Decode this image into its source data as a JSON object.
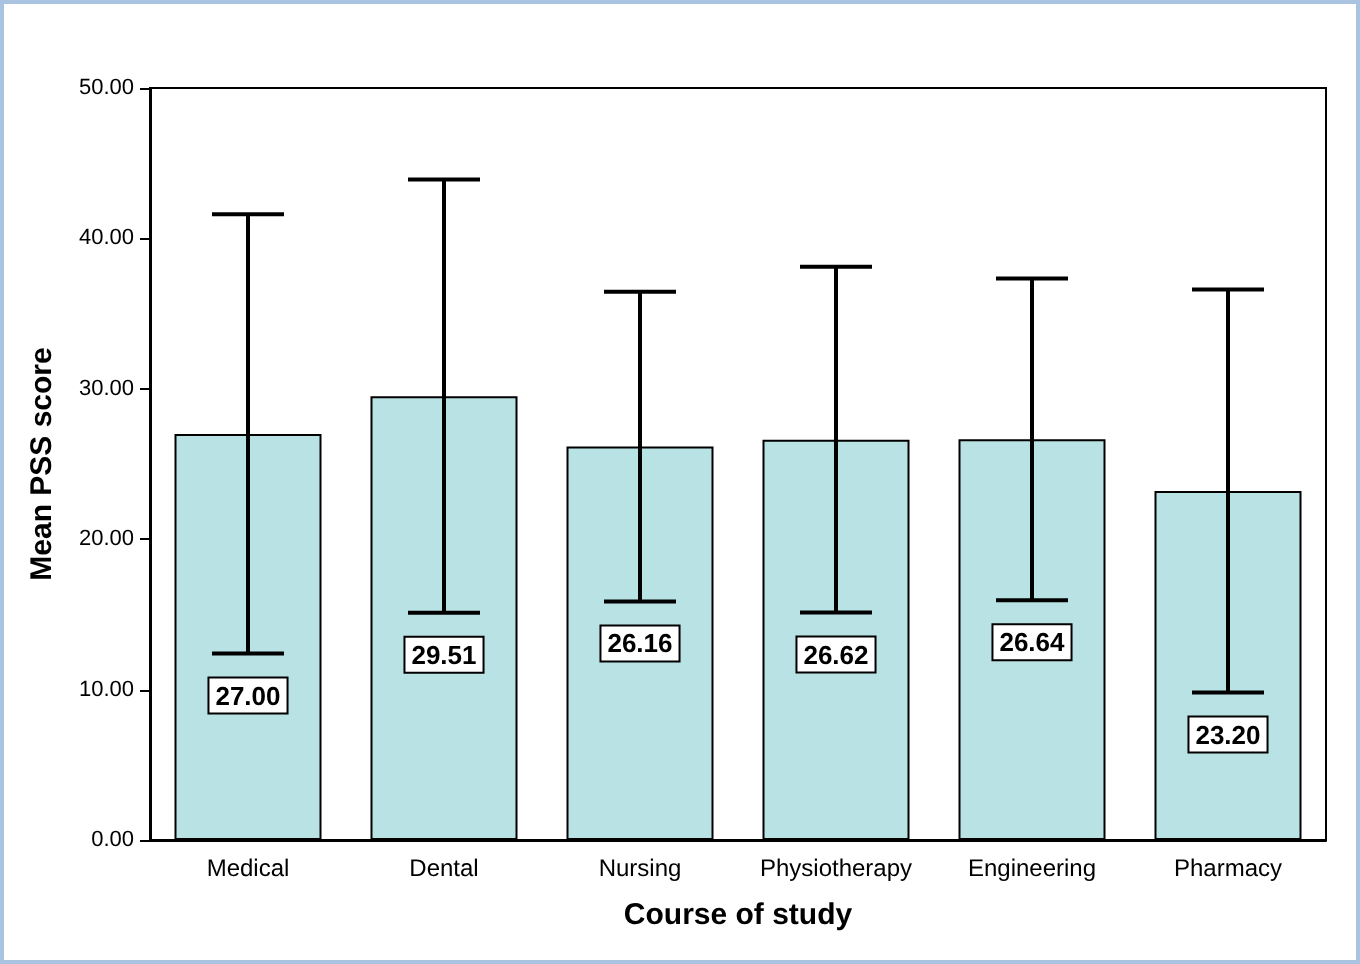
{
  "chart_data": {
    "type": "bar",
    "xlabel": "Course of study",
    "ylabel": "Mean PSS score",
    "categories": [
      "Medical",
      "Dental",
      "Nursing",
      "Physiotherapy",
      "Engineering",
      "Pharmacy"
    ],
    "values": [
      27.0,
      29.51,
      26.16,
      26.62,
      26.64,
      23.2
    ],
    "errors": [
      14.6,
      14.4,
      10.3,
      11.5,
      10.7,
      13.4
    ],
    "value_labels": [
      "27.00",
      "29.51",
      "26.16",
      "26.62",
      "26.64",
      "23.20"
    ],
    "color": "#b8e2e4",
    "ylim": [
      0,
      50
    ],
    "yticks": [
      {
        "value": 0,
        "label": "0.00"
      },
      {
        "value": 10,
        "label": "10.00"
      },
      {
        "value": 20,
        "label": "20.00"
      },
      {
        "value": 30,
        "label": "30.00"
      },
      {
        "value": 40,
        "label": "40.00"
      },
      {
        "value": 50,
        "label": "50.00"
      }
    ],
    "grid": false
  }
}
